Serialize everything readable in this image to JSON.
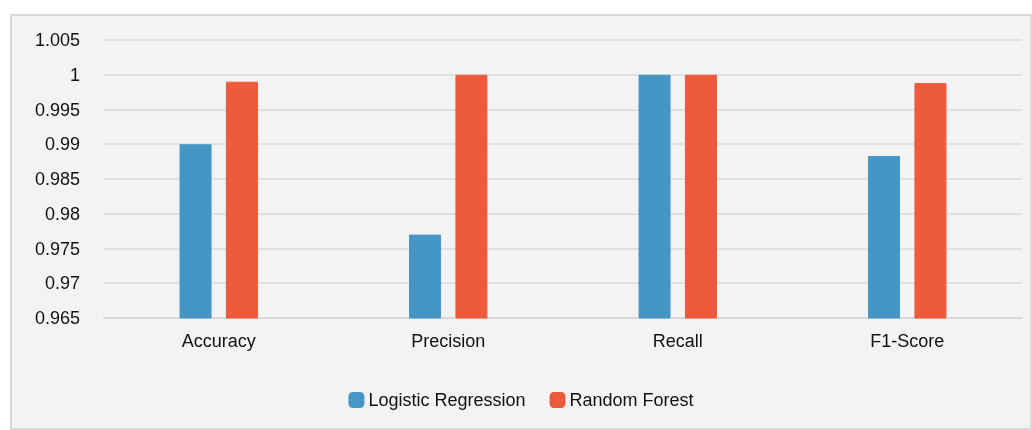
{
  "chart_data": {
    "type": "bar",
    "categories": [
      "Accuracy",
      "Precision",
      "Recall",
      "F1-Score"
    ],
    "series": [
      {
        "name": "Logistic Regression",
        "color": "#4596c4",
        "values": [
          0.99,
          0.977,
          1.0,
          0.9883
        ]
      },
      {
        "name": "Random Forest",
        "color": "#ee5a3c",
        "values": [
          0.999,
          1.0,
          1.0,
          0.9988
        ]
      }
    ],
    "ylim": [
      0.965,
      1.005
    ],
    "yticks": [
      0.965,
      0.97,
      0.975,
      0.98,
      0.985,
      0.99,
      0.995,
      1,
      1.005
    ],
    "grid": "y",
    "legend": "bottom"
  }
}
